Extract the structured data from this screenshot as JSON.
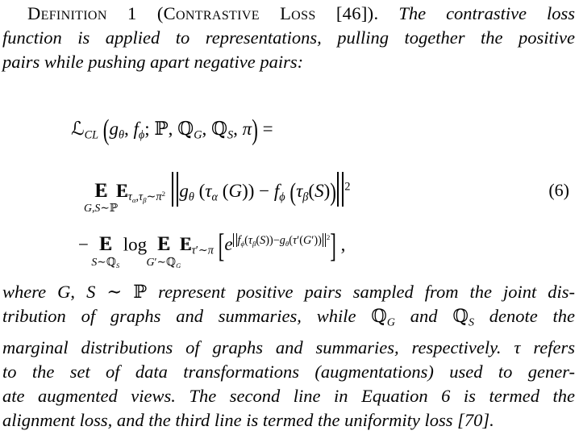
{
  "intro": {
    "lines": [
      {
        "indent": true,
        "justify": true,
        "segments": [
          {
            "style": "sc",
            "text": "Definition 1 (Contrastive Loss [46])."
          },
          {
            "style": "i",
            "text": " The contrastive loss"
          }
        ]
      },
      {
        "justify": true,
        "segments": [
          {
            "style": "i",
            "text": "function is applied to representations, pulling together the positive"
          }
        ]
      },
      {
        "segments": [
          {
            "style": "i",
            "text": "pairs while pushing apart negative pairs:"
          }
        ]
      }
    ]
  },
  "equation": {
    "number": "(6)",
    "lines": [
      [
        {
          "k": "m",
          "x": "ℒ_{CL} "
        },
        {
          "k": "big",
          "x": "(",
          "s": 1.55
        },
        {
          "k": "m",
          "x": "g_{θ}, f_{ϕ}; ℙ, ℚ_{G}, ℚ_{S}, π"
        },
        {
          "k": "big",
          "x": ")",
          "s": 1.55
        },
        {
          "k": "m",
          "x": " ="
        }
      ],
      [
        {
          "k": "E",
          "main": "𝔼",
          "under": "G,S∼ℙ"
        },
        {
          "k": "sp",
          "w": 0.45
        },
        {
          "k": "m",
          "x": "𝔼_{τ_{α},τ_{β}∼π^{2}}"
        },
        {
          "k": "sp",
          "w": 0.3
        },
        {
          "k": "bign"
        },
        {
          "k": "m",
          "x": "g_{θ} (τ_{α} (G)) − f_{ϕ} "
        },
        {
          "k": "big",
          "x": "(",
          "s": 1.4
        },
        {
          "k": "m",
          "x": "τ_{β}(S)"
        },
        {
          "k": "big",
          "x": ")",
          "s": 1.4
        },
        {
          "k": "bign"
        },
        {
          "k": "m",
          "x": "^{2}"
        }
      ],
      [
        {
          "k": "m",
          "x": "−"
        },
        {
          "k": "sp",
          "w": 0.55
        },
        {
          "k": "E",
          "main": "𝔼",
          "under": "S∼ℚ_{S}"
        },
        {
          "k": "sp",
          "w": 0.6
        },
        {
          "k": "rm",
          "x": "log"
        },
        {
          "k": "sp",
          "w": 0.55
        },
        {
          "k": "E",
          "main": "𝔼",
          "under": "G′∼ℚ_{G}"
        },
        {
          "k": "sp",
          "w": 0.5
        },
        {
          "k": "m",
          "x": "𝔼_{τ′∼π}"
        },
        {
          "k": "sp",
          "w": 0.25
        },
        {
          "k": "big",
          "x": "[",
          "s": 1.8
        },
        {
          "k": "m",
          "x": "e^{‖f_{ϕ}(τ_{β}(S))−g_{θ}(τ′(G′))‖^{2}}"
        },
        {
          "k": "big",
          "x": "]",
          "s": 1.8
        },
        {
          "k": "m",
          "x": " ,"
        }
      ]
    ]
  },
  "closing": {
    "lines": [
      {
        "justify": true,
        "segments": [
          {
            "style": "i",
            "text": "where "
          },
          {
            "style": "m",
            "text": "G, S ∼ ℙ"
          },
          {
            "style": "i",
            "text": " represent positive pairs sampled from the joint dis-"
          }
        ]
      },
      {
        "justify": true,
        "segments": [
          {
            "style": "i",
            "text": "tribution of graphs and summaries, while "
          },
          {
            "style": "m",
            "text": "ℚ_{G}"
          },
          {
            "style": "i",
            "text": " and "
          },
          {
            "style": "m",
            "text": "ℚ_{S}"
          },
          {
            "style": "i",
            "text": " denote the"
          }
        ]
      },
      {
        "justify": true,
        "segments": [
          {
            "style": "i",
            "text": "marginal distributions of graphs and summaries, respectively. "
          },
          {
            "style": "m",
            "text": "τ"
          },
          {
            "style": "i",
            "text": " refers"
          }
        ]
      },
      {
        "justify": true,
        "segments": [
          {
            "style": "i",
            "text": "to the set of data transformations (augmentations) used to gener-"
          }
        ]
      },
      {
        "justify": true,
        "segments": [
          {
            "style": "i",
            "text": "ate augmented views. The second line in Equation 6 is termed the"
          }
        ]
      },
      {
        "segments": [
          {
            "style": "i",
            "text": "alignment loss, and the third line is termed the uniformity loss [70]."
          }
        ]
      }
    ]
  }
}
